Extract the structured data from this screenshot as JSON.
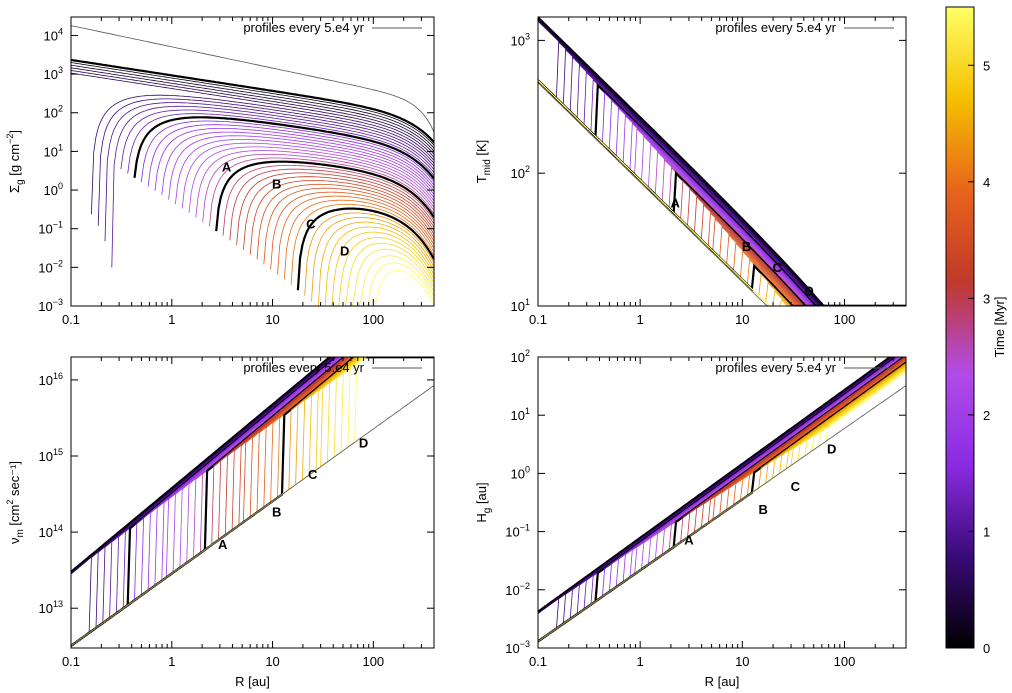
{
  "figure": {
    "legend_text": "profiles every 5.e4 yr",
    "colorbar": {
      "label": "Time [Myr]",
      "ticks": [
        "0",
        "1",
        "2",
        "3",
        "4",
        "5"
      ],
      "range": [
        0,
        5.5
      ],
      "stops": [
        "#000000",
        "#3a0a78",
        "#8a2be2",
        "#b14be8",
        "#c0392b",
        "#e8641b",
        "#f5c000",
        "#ffff66"
      ]
    }
  },
  "chart_data": [
    {
      "type": "line",
      "xlabel": "",
      "ylabel_main": "Σ",
      "ylabel_sub": "g",
      "ylabel_rest": " [g cm",
      "ylabel_sup": "−2",
      "ylabel_end": "]",
      "xscale": "log",
      "yscale": "log",
      "xlim": [
        0.1,
        400
      ],
      "ylim": [
        0.001,
        30000
      ],
      "x_ticks": [
        "0.1",
        "1",
        "10",
        "100"
      ],
      "y_ticks": [
        {
          "base": "10",
          "exp": "4"
        },
        {
          "base": "10",
          "exp": "3"
        },
        {
          "base": "10",
          "exp": "2"
        },
        {
          "base": "10",
          "exp": "1"
        },
        {
          "base": "10",
          "exp": "0"
        },
        {
          "base": "10",
          "exp": "−1"
        },
        {
          "base": "10",
          "exp": "−2"
        },
        {
          "base": "10",
          "exp": "−3"
        }
      ],
      "markers": [
        {
          "label": "A",
          "x": 3.5,
          "y": 3
        },
        {
          "label": "B",
          "x": 11,
          "y": 1.1
        },
        {
          "label": "C",
          "x": 24,
          "y": 0.1
        },
        {
          "label": "D",
          "x": 52,
          "y": 0.02
        }
      ]
    },
    {
      "type": "line",
      "xlabel": "",
      "ylabel_main": "T",
      "ylabel_sub": "mid",
      "ylabel_rest": " [K]",
      "ylabel_sup": "",
      "ylabel_end": "",
      "xscale": "log",
      "yscale": "log",
      "xlim": [
        0.1,
        400
      ],
      "ylim": [
        10,
        1500
      ],
      "x_ticks": [
        "0.1",
        "1",
        "10",
        "100"
      ],
      "y_ticks": [
        {
          "base": "10",
          "exp": "3"
        },
        {
          "base": "10",
          "exp": "2"
        },
        {
          "base": "10",
          "exp": "1"
        }
      ],
      "markers": [
        {
          "label": "A",
          "x": 2.2,
          "y": 55
        },
        {
          "label": "B",
          "x": 11,
          "y": 26
        },
        {
          "label": "C",
          "x": 22,
          "y": 18
        },
        {
          "label": "D",
          "x": 45,
          "y": 12
        }
      ]
    },
    {
      "type": "line",
      "xlabel": "R [au]",
      "ylabel_main": "ν",
      "ylabel_sub": "m",
      "ylabel_rest": " [cm",
      "ylabel_sup": "2",
      "ylabel_end": " sec⁻¹]",
      "xscale": "log",
      "yscale": "log",
      "xlim": [
        0.1,
        400
      ],
      "ylim": 3000000000000.0,
      "ylim_top": 2e+16,
      "x_ticks": [
        "0.1",
        "1",
        "10",
        "100"
      ],
      "y_ticks": [
        {
          "base": "10",
          "exp": "16"
        },
        {
          "base": "10",
          "exp": "15"
        },
        {
          "base": "10",
          "exp": "14"
        },
        {
          "base": "10",
          "exp": "13"
        }
      ],
      "markers": [
        {
          "label": "A",
          "x": 3.2,
          "y": 60000000000000.0
        },
        {
          "label": "B",
          "x": 11,
          "y": 160000000000000.0
        },
        {
          "label": "C",
          "x": 25,
          "y": 500000000000000.0
        },
        {
          "label": "D",
          "x": 80,
          "y": 1300000000000000.0
        }
      ]
    },
    {
      "type": "line",
      "xlabel": "R [au]",
      "ylabel_main": "H",
      "ylabel_sub": "g",
      "ylabel_rest": " [au]",
      "ylabel_sup": "",
      "ylabel_end": "",
      "xscale": "log",
      "yscale": "log",
      "xlim": [
        0.1,
        400
      ],
      "ylim": [
        0.001,
        100
      ],
      "x_ticks": [
        "0.1",
        "1",
        "10",
        "100"
      ],
      "y_ticks": [
        {
          "base": "10",
          "exp": "2"
        },
        {
          "base": "10",
          "exp": "1"
        },
        {
          "base": "10",
          "exp": "0"
        },
        {
          "base": "10",
          "exp": "−1"
        },
        {
          "base": "10",
          "exp": "−2"
        },
        {
          "base": "10",
          "exp": "−3"
        }
      ],
      "markers": [
        {
          "label": "A",
          "x": 3,
          "y": 0.06
        },
        {
          "label": "B",
          "x": 16,
          "y": 0.2
        },
        {
          "label": "C",
          "x": 33,
          "y": 0.5
        },
        {
          "label": "D",
          "x": 75,
          "y": 2.2
        }
      ]
    }
  ]
}
